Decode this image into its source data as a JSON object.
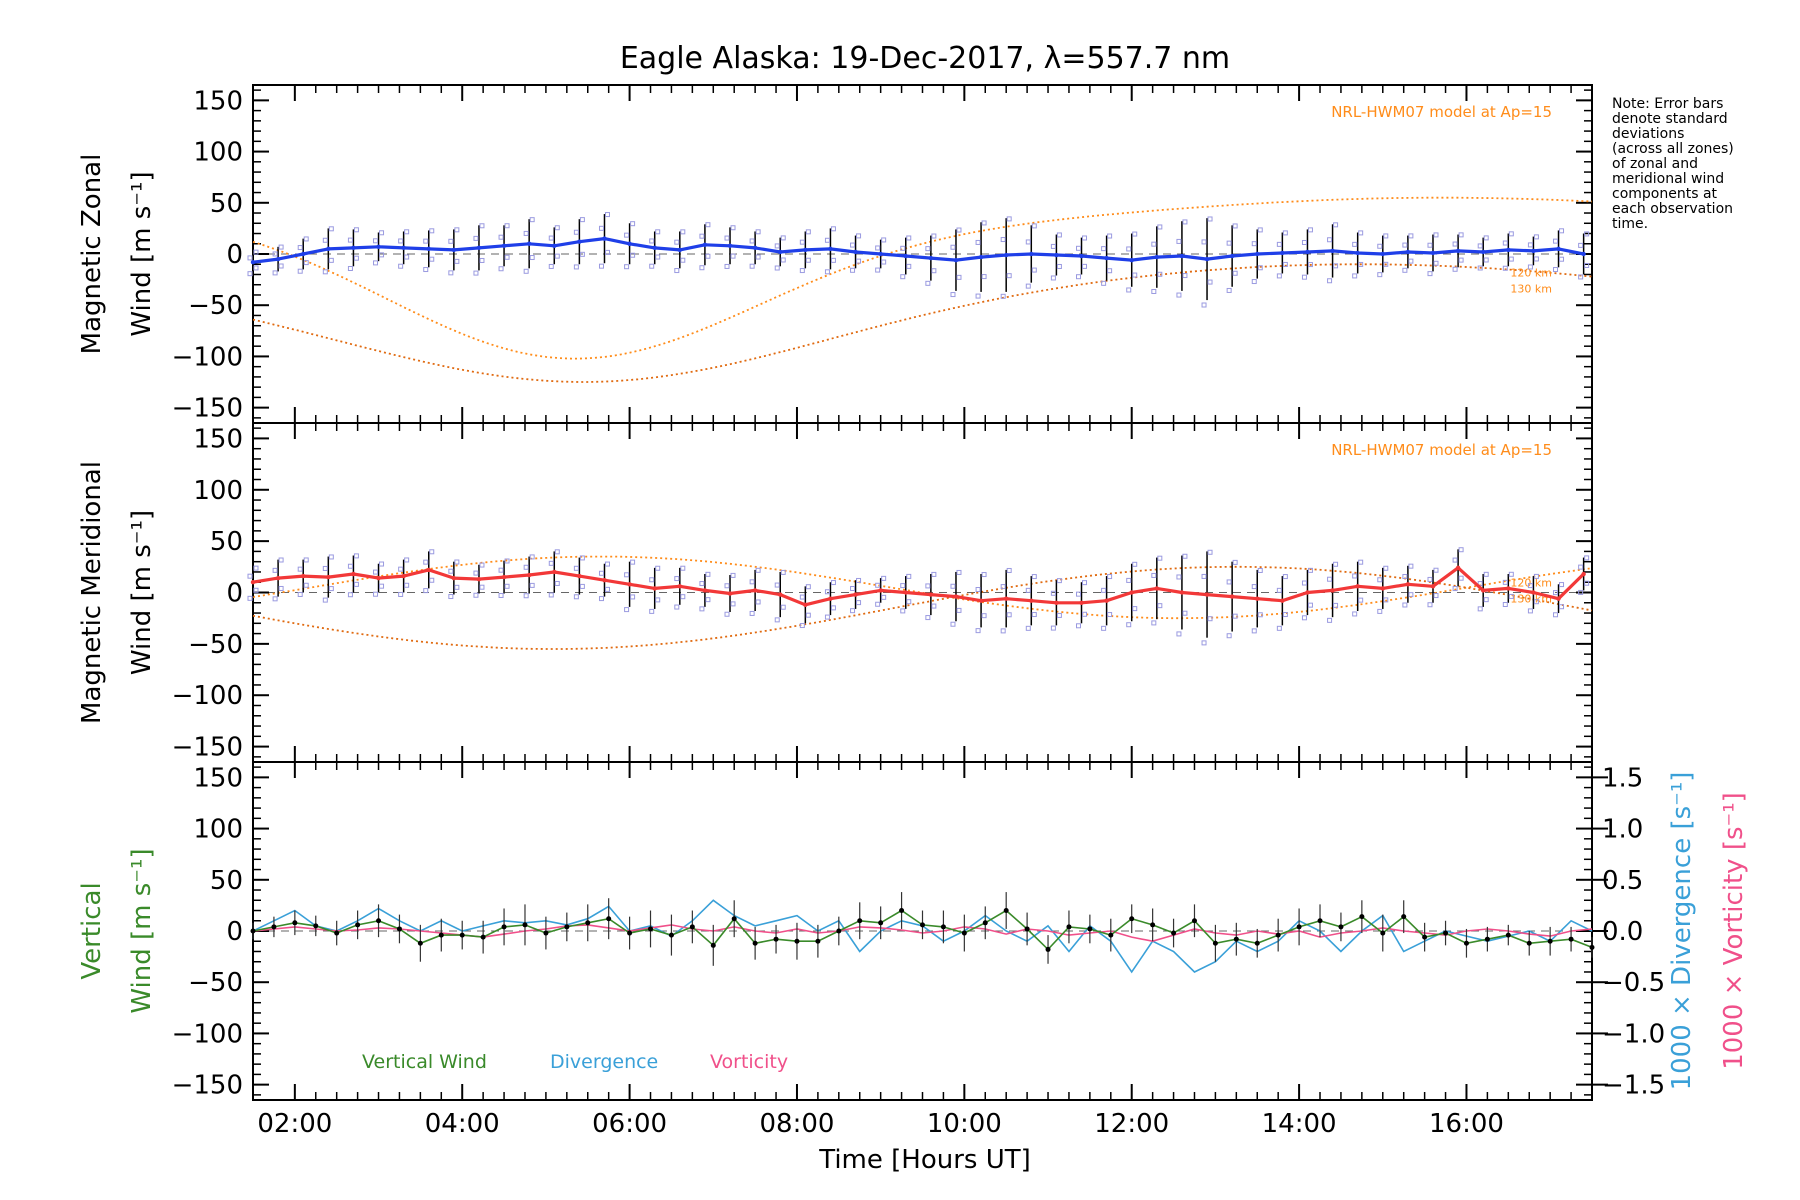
{
  "chart_data": {
    "type": "line",
    "title": "Eagle Alaska: 19-Dec-2017, λ=557.7 nm",
    "xlabel": "Time [Hours UT]",
    "xlim": [
      1.5,
      17.5
    ],
    "x_ticks": [
      2,
      4,
      6,
      8,
      10,
      12,
      14,
      16
    ],
    "x_tick_labels": [
      "02:00",
      "04:00",
      "06:00",
      "08:00",
      "10:00",
      "12:00",
      "14:00",
      "16:00"
    ],
    "y_ticks": [
      -150,
      -100,
      -50,
      0,
      50,
      100,
      150
    ],
    "ylim": [
      -165,
      165
    ],
    "note_lines": [
      "Note: Error bars",
      "denote standard",
      "deviations",
      "(across all zones)",
      "of zonal and",
      "meridional wind",
      "components at",
      "each observation",
      "time."
    ],
    "colors": {
      "zonal": "#1f3fe8",
      "meridional": "#f23838",
      "vertical": "#3a8a2a",
      "divergence": "#3aa0d8",
      "vorticity": "#f0508a",
      "model": "#ff8c1a",
      "zone_points": "#9a9ae0"
    },
    "panels": [
      {
        "id": "zonal",
        "ylabel_line1": "Magnetic Zonal",
        "ylabel_line2": "Wind [m s⁻¹]",
        "model_label": "NRL-HWM07 model at Ap=15",
        "model_alt_labels": [
          "120 km",
          "130 km"
        ],
        "series": [
          {
            "name": "Magnetic Zonal Wind",
            "x": [
              1.5,
              1.8,
              2.1,
              2.4,
              2.7,
              3.0,
              3.3,
              3.6,
              3.9,
              4.2,
              4.5,
              4.8,
              5.1,
              5.4,
              5.7,
              6.0,
              6.3,
              6.6,
              6.9,
              7.2,
              7.5,
              7.8,
              8.1,
              8.4,
              8.7,
              9.0,
              9.3,
              9.6,
              9.9,
              10.2,
              10.5,
              10.8,
              11.1,
              11.4,
              11.7,
              12.0,
              12.3,
              12.6,
              12.9,
              13.2,
              13.5,
              13.8,
              14.1,
              14.4,
              14.7,
              15.0,
              15.3,
              15.6,
              15.9,
              16.2,
              16.5,
              16.8,
              17.1,
              17.4
            ],
            "y": [
              -8,
              -5,
              0,
              5,
              6,
              7,
              6,
              5,
              4,
              6,
              8,
              10,
              8,
              12,
              15,
              10,
              6,
              4,
              9,
              8,
              6,
              2,
              4,
              5,
              2,
              0,
              -2,
              -4,
              -6,
              -3,
              -1,
              0,
              -1,
              -2,
              -4,
              -6,
              -3,
              -2,
              -5,
              -2,
              0,
              1,
              2,
              3,
              1,
              0,
              2,
              1,
              3,
              2,
              4,
              3,
              5,
              0
            ],
            "err": [
              10,
              12,
              15,
              20,
              18,
              14,
              16,
              18,
              20,
              22,
              20,
              24,
              18,
              22,
              24,
              20,
              16,
              18,
              20,
              18,
              16,
              14,
              18,
              20,
              16,
              14,
              18,
              22,
              30,
              34,
              36,
              28,
              20,
              18,
              22,
              26,
              30,
              34,
              40,
              30,
              24,
              20,
              22,
              26,
              20,
              18,
              16,
              18,
              16,
              14,
              16,
              14,
              18,
              20
            ]
          }
        ]
      },
      {
        "id": "meridional",
        "ylabel_line1": "Magnetic Meridional",
        "ylabel_line2": "Wind [m s⁻¹]",
        "model_label": "NRL-HWM07 model at Ap=15",
        "model_alt_labels": [
          "120 km",
          "130 km"
        ],
        "series": [
          {
            "name": "Magnetic Meridional Wind",
            "x": [
              1.5,
              1.8,
              2.1,
              2.4,
              2.7,
              3.0,
              3.3,
              3.6,
              3.9,
              4.2,
              4.5,
              4.8,
              5.1,
              5.4,
              5.7,
              6.0,
              6.3,
              6.6,
              6.9,
              7.2,
              7.5,
              7.8,
              8.1,
              8.4,
              8.7,
              9.0,
              9.3,
              9.6,
              9.9,
              10.2,
              10.5,
              10.8,
              11.1,
              11.4,
              11.7,
              12.0,
              12.3,
              12.6,
              12.9,
              13.2,
              13.5,
              13.8,
              14.1,
              14.4,
              14.7,
              15.0,
              15.3,
              15.6,
              15.9,
              16.2,
              16.5,
              16.8,
              17.1,
              17.4
            ],
            "y": [
              10,
              14,
              16,
              15,
              18,
              14,
              16,
              22,
              14,
              13,
              15,
              17,
              20,
              16,
              12,
              8,
              4,
              6,
              2,
              -1,
              2,
              -2,
              -12,
              -6,
              -2,
              2,
              0,
              -2,
              -4,
              -8,
              -6,
              -8,
              -10,
              -10,
              -8,
              0,
              4,
              0,
              -2,
              -4,
              -6,
              -8,
              0,
              2,
              6,
              4,
              8,
              6,
              24,
              2,
              4,
              0,
              -6,
              18
            ],
            "err": [
              14,
              18,
              16,
              20,
              18,
              14,
              16,
              18,
              16,
              14,
              16,
              18,
              20,
              18,
              16,
              22,
              20,
              18,
              16,
              18,
              20,
              22,
              18,
              16,
              14,
              12,
              16,
              20,
              24,
              26,
              28,
              24,
              22,
              20,
              24,
              28,
              30,
              36,
              42,
              34,
              28,
              24,
              22,
              26,
              24,
              20,
              18,
              16,
              18,
              16,
              14,
              16,
              14,
              16
            ]
          }
        ]
      },
      {
        "id": "vertical",
        "ylabel_line1": "Vertical",
        "ylabel_line2": "Wind [m s⁻¹]",
        "right_label_divergence": "1000 × Divergence [s⁻¹]",
        "right_label_vorticity": "1000 × Vorticity [s⁻¹]",
        "right_ylim": [
          -1.65,
          1.65
        ],
        "right_ticks": [
          -1.5,
          -1.0,
          -0.5,
          0.0,
          0.5,
          1.0,
          1.5
        ],
        "right_tick_labels": [
          "−1.5",
          "−1.0",
          "−0.5",
          "0.0",
          "0.5",
          "1.0",
          "1.5"
        ],
        "legend": [
          "Vertical Wind",
          "Divergence",
          "Vorticity"
        ],
        "series": [
          {
            "name": "Vertical Wind",
            "x": [
              1.5,
              1.75,
              2.0,
              2.25,
              2.5,
              2.75,
              3.0,
              3.25,
              3.5,
              3.75,
              4.0,
              4.25,
              4.5,
              4.75,
              5.0,
              5.25,
              5.5,
              5.75,
              6.0,
              6.25,
              6.5,
              6.75,
              7.0,
              7.25,
              7.5,
              7.75,
              8.0,
              8.25,
              8.5,
              8.75,
              9.0,
              9.25,
              9.5,
              9.75,
              10.0,
              10.25,
              10.5,
              10.75,
              11.0,
              11.25,
              11.5,
              11.75,
              12.0,
              12.25,
              12.5,
              12.75,
              13.0,
              13.25,
              13.5,
              13.75,
              14.0,
              14.25,
              14.5,
              14.75,
              15.0,
              15.25,
              15.5,
              15.75,
              16.0,
              16.25,
              16.5,
              16.75,
              17.0,
              17.25,
              17.5
            ],
            "y": [
              0,
              4,
              8,
              5,
              -2,
              6,
              10,
              2,
              -12,
              -4,
              -4,
              -6,
              4,
              6,
              -2,
              4,
              8,
              12,
              -2,
              2,
              -4,
              4,
              -14,
              12,
              -12,
              -8,
              -10,
              -10,
              0,
              10,
              8,
              20,
              6,
              4,
              -2,
              8,
              20,
              2,
              -18,
              4,
              2,
              -4,
              12,
              6,
              -2,
              10,
              -12,
              -8,
              -12,
              -4,
              4,
              10,
              4,
              14,
              -2,
              14,
              -6,
              -2,
              -12,
              -8,
              -4,
              -12,
              -10,
              -8,
              -16
            ],
            "err": [
              8,
              10,
              12,
              10,
              12,
              14,
              16,
              14,
              18,
              16,
              14,
              16,
              18,
              20,
              16,
              14,
              18,
              20,
              16,
              18,
              20,
              16,
              20,
              18,
              16,
              14,
              18,
              16,
              14,
              18,
              16,
              18,
              14,
              16,
              18,
              16,
              18,
              16,
              14,
              16,
              14,
              16,
              14,
              16,
              14,
              16,
              18,
              16,
              14,
              16,
              18,
              16,
              14,
              16,
              18,
              16,
              14,
              12,
              14,
              12,
              10,
              12,
              14,
              12,
              10
            ]
          },
          {
            "name": "Divergence",
            "x": [
              1.5,
              1.75,
              2.0,
              2.25,
              2.5,
              2.75,
              3.0,
              3.25,
              3.5,
              3.75,
              4.0,
              4.25,
              4.5,
              4.75,
              5.0,
              5.25,
              5.5,
              5.75,
              6.0,
              6.25,
              6.5,
              6.75,
              7.0,
              7.25,
              7.5,
              7.75,
              8.0,
              8.25,
              8.5,
              8.75,
              9.0,
              9.25,
              9.5,
              9.75,
              10.0,
              10.25,
              10.5,
              10.75,
              11.0,
              11.25,
              11.5,
              11.75,
              12.0,
              12.25,
              12.5,
              12.75,
              13.0,
              13.25,
              13.5,
              13.75,
              14.0,
              14.25,
              14.5,
              14.75,
              15.0,
              15.25,
              15.5,
              15.75,
              16.0,
              16.25,
              16.5,
              16.75,
              17.0,
              17.25,
              17.5
            ],
            "y": [
              0.0,
              0.1,
              0.2,
              0.05,
              0.0,
              0.1,
              0.22,
              0.1,
              0.0,
              0.1,
              0.0,
              0.05,
              0.1,
              0.08,
              0.1,
              0.06,
              0.12,
              0.24,
              0.0,
              0.05,
              -0.05,
              0.1,
              0.3,
              0.15,
              0.05,
              0.1,
              0.15,
              0.0,
              0.1,
              -0.2,
              0.0,
              0.1,
              0.05,
              -0.1,
              0.0,
              0.15,
              0.0,
              -0.1,
              0.05,
              -0.2,
              0.05,
              -0.1,
              -0.4,
              -0.1,
              -0.2,
              -0.4,
              -0.3,
              -0.1,
              -0.2,
              -0.1,
              0.1,
              0.0,
              -0.2,
              0.0,
              0.15,
              -0.2,
              -0.1,
              0.0,
              -0.05,
              -0.1,
              -0.05,
              0.0,
              -0.1,
              0.1,
              0.0
            ]
          },
          {
            "name": "Vorticity",
            "x": [
              1.5,
              1.75,
              2.0,
              2.25,
              2.5,
              2.75,
              3.0,
              3.25,
              3.5,
              3.75,
              4.0,
              4.25,
              4.5,
              4.75,
              5.0,
              5.25,
              5.5,
              5.75,
              6.0,
              6.25,
              6.5,
              6.75,
              7.0,
              7.25,
              7.5,
              7.75,
              8.0,
              8.25,
              8.5,
              8.75,
              9.0,
              9.25,
              9.5,
              9.75,
              10.0,
              10.25,
              10.5,
              10.75,
              11.0,
              11.25,
              11.5,
              11.75,
              12.0,
              12.25,
              12.5,
              12.75,
              13.0,
              13.25,
              13.5,
              13.75,
              14.0,
              14.25,
              14.5,
              14.75,
              15.0,
              15.25,
              15.5,
              15.75,
              16.0,
              16.25,
              16.5,
              16.75,
              17.0,
              17.25,
              17.5
            ],
            "y": [
              0.0,
              0.02,
              0.04,
              0.02,
              0.0,
              0.01,
              0.03,
              0.02,
              0.0,
              -0.02,
              -0.04,
              -0.06,
              -0.03,
              0.0,
              0.02,
              0.05,
              0.06,
              0.03,
              0.0,
              0.03,
              0.06,
              0.02,
              0.0,
              0.04,
              0.0,
              -0.02,
              0.02,
              -0.02,
              0.0,
              0.04,
              0.03,
              0.01,
              -0.02,
              0.0,
              0.04,
              0.02,
              -0.03,
              0.02,
              0.0,
              -0.04,
              -0.02,
              0.0,
              -0.06,
              -0.1,
              -0.04,
              0.02,
              -0.02,
              -0.04,
              0.0,
              -0.03,
              0.0,
              -0.06,
              -0.02,
              0.0,
              0.03,
              0.0,
              -0.02,
              -0.04,
              0.0,
              0.02,
              0.0,
              -0.03,
              -0.05,
              0.0,
              0.02
            ]
          }
        ]
      }
    ]
  }
}
